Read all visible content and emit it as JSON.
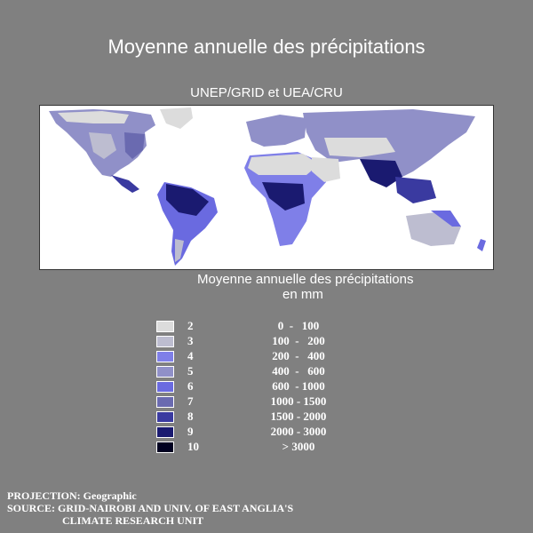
{
  "title": "Moyenne annuelle des précipitations",
  "subtitle": "UNEP/GRID et UEA/CRU",
  "legend": {
    "title_line1": "Moyenne annuelle des précipitations",
    "title_line2": "en mm",
    "classes": [
      {
        "id": "2",
        "range": "0  -   100",
        "color": "#dcdcdc"
      },
      {
        "id": "3",
        "range": "100  -   200",
        "color": "#bdbdd0"
      },
      {
        "id": "4",
        "range": "200  -   400",
        "color": "#7f7fe8"
      },
      {
        "id": "5",
        "range": "400  -   600",
        "color": "#9090c8"
      },
      {
        "id": "6",
        "range": "600  - 1000",
        "color": "#6a6ae0"
      },
      {
        "id": "7",
        "range": "1000 - 1500",
        "color": "#6a6ab0"
      },
      {
        "id": "8",
        "range": "1500 - 2000",
        "color": "#3a3aa0"
      },
      {
        "id": "9",
        "range": "2000 - 3000",
        "color": "#1a1a70"
      },
      {
        "id": "10",
        "range": "> 3000",
        "color": "#000020"
      }
    ]
  },
  "footer": {
    "line1": "PROJECTION: Geographic",
    "line2": "SOURCE: GRID-NAIROBI AND UNIV. OF EAST ANGLIA'S",
    "line3": "CLIMATE RESEARCH UNIT"
  }
}
